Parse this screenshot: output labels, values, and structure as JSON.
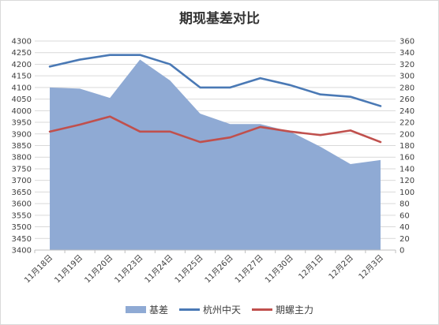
{
  "chart_data": {
    "type": "line",
    "title": "期现基差对比",
    "categories": [
      "11月18日",
      "11月19日",
      "11月20日",
      "11月23日",
      "11月24日",
      "11月25日",
      "11月26日",
      "11月27日",
      "11月30日",
      "12月1日",
      "12月2日",
      "12月3日"
    ],
    "y_left": {
      "min": 3400,
      "max": 4300,
      "step": 50
    },
    "y_right": {
      "min": 0,
      "max": 360,
      "step": 20
    },
    "series": [
      {
        "name": "基差",
        "kind": "area",
        "axis": "right",
        "color": "#8FAAD4",
        "values": [
          280,
          278,
          262,
          328,
          292,
          235,
          217,
          217,
          204,
          178,
          148,
          155
        ]
      },
      {
        "name": "杭州中天",
        "kind": "line",
        "axis": "left",
        "color": "#4A79B5",
        "values": [
          4190,
          4220,
          4240,
          4240,
          4200,
          4100,
          4100,
          4140,
          4110,
          4070,
          4060,
          4020
        ]
      },
      {
        "name": "期螺主力",
        "kind": "line",
        "axis": "left",
        "color": "#C0504D",
        "values": [
          3910,
          3940,
          3975,
          3910,
          3910,
          3865,
          3885,
          3930,
          3910,
          3895,
          3915,
          3865
        ]
      }
    ],
    "grid": true,
    "legend_position": "bottom"
  }
}
